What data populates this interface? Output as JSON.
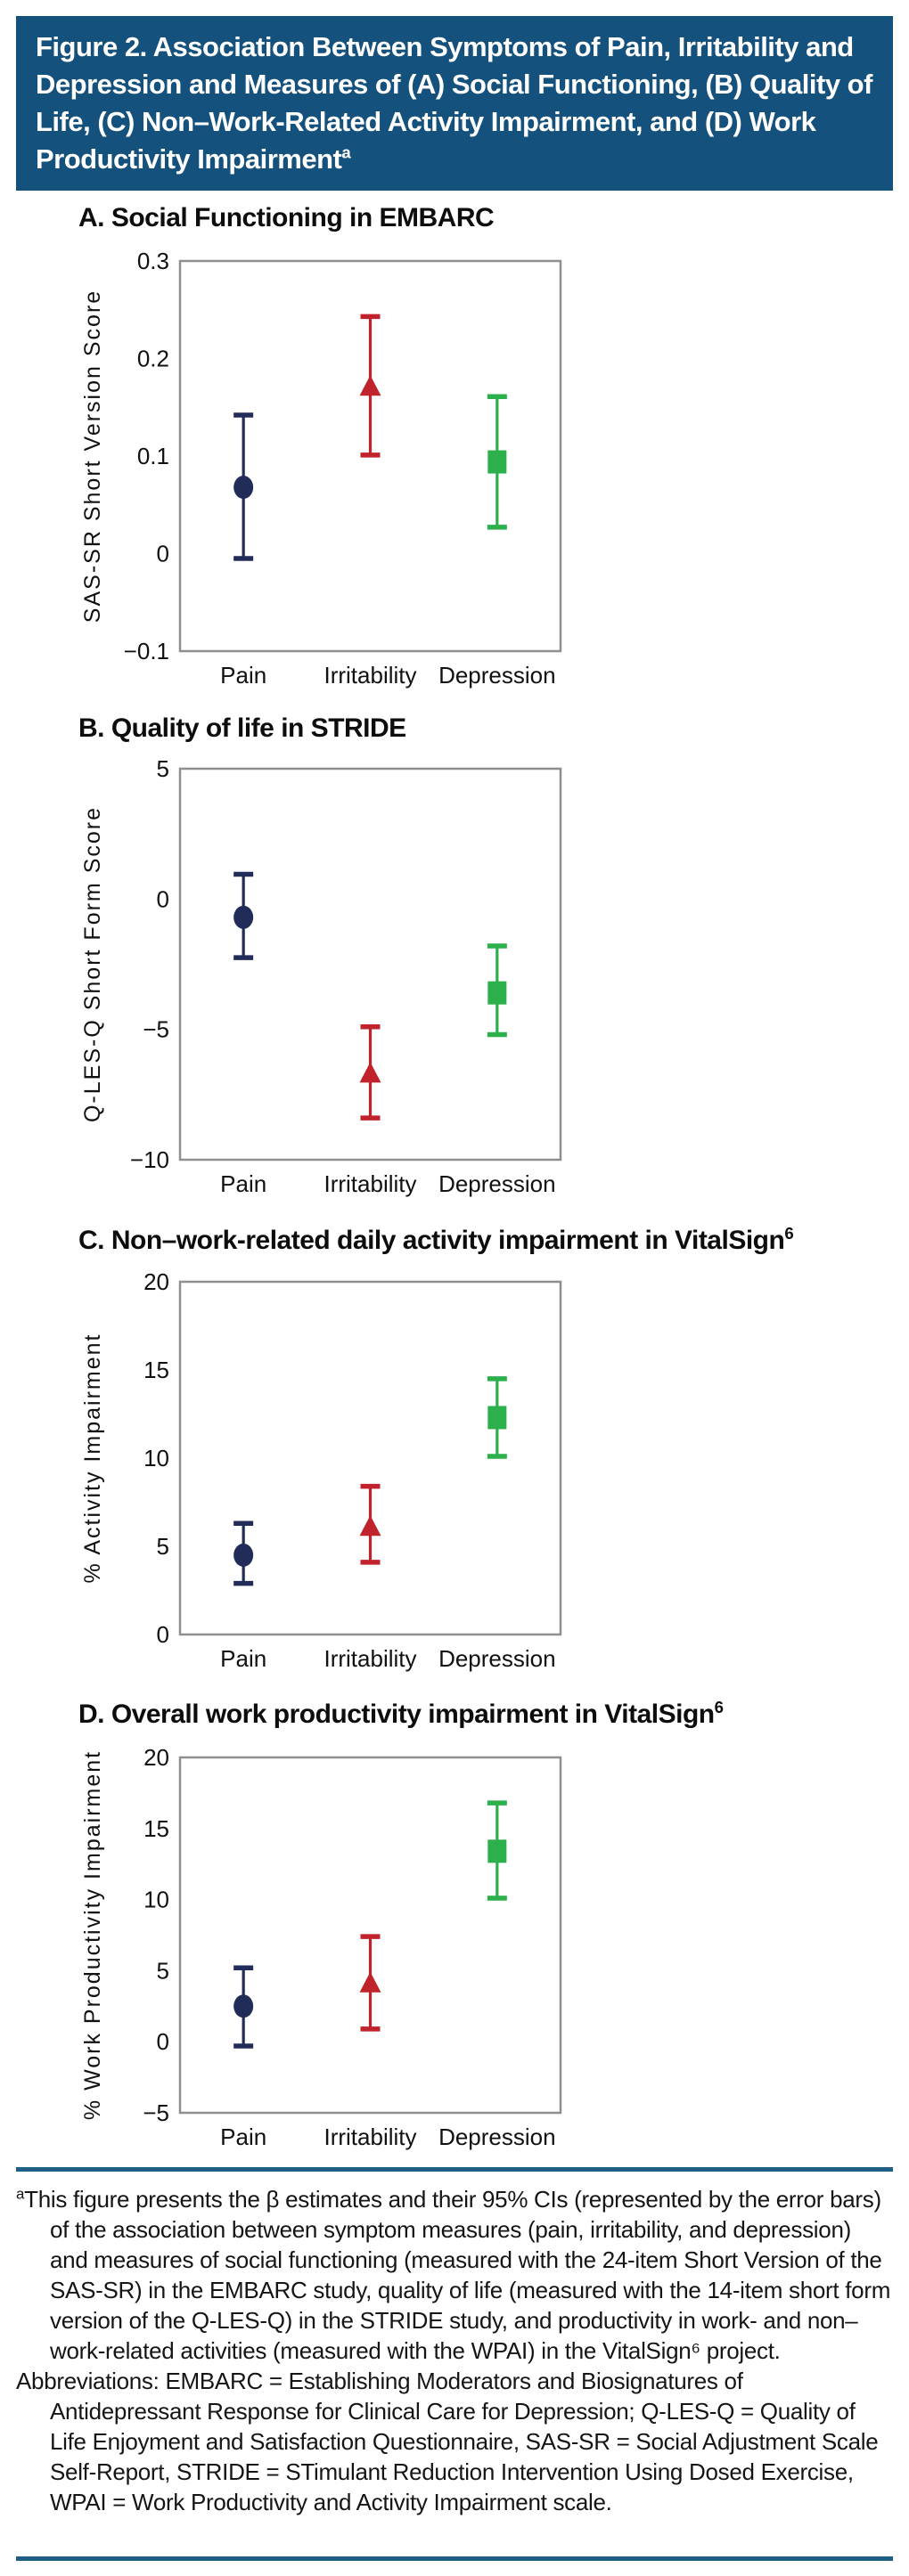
{
  "header": {
    "title": "Figure 2. Association Between Symptoms of Pain, Irritability and Depression and Measures of (A) Social Functioning, (B) Quality of Life, (C) Non–Work-Related Activity Impairment, and (D) Work Productivity Impairment",
    "superscript": "a"
  },
  "colors": {
    "header_bg": "#15517D",
    "rule": "#1F5F86",
    "frame": "#8F8F8F",
    "navy": "#222C58",
    "red": "#C0232C",
    "green": "#2BB04C",
    "text": "#111111"
  },
  "categories": [
    "Pain",
    "Irritability",
    "Depression"
  ],
  "chart_data": [
    {
      "id": "panel-a",
      "type": "scatter",
      "title": "A. Social Functioning in EMBARC",
      "ylabel": "SAS-SR Short Version Score",
      "ylim": [
        -0.1,
        0.3
      ],
      "ytick_values": [
        0.3,
        0.2,
        0.1,
        0,
        -0.1
      ],
      "ytick_labels": [
        "0.3",
        "0.2",
        "0.1",
        "0",
        "−0.1"
      ],
      "categories": [
        "Pain",
        "Irritability",
        "Depression"
      ],
      "grid": false,
      "legend": "none",
      "points": [
        {
          "category": "Pain",
          "marker": "circle",
          "color_key": "navy",
          "estimate": 0.068,
          "ci_low": -0.005,
          "ci_high": 0.142
        },
        {
          "category": "Irritability",
          "marker": "triangle",
          "color_key": "red",
          "estimate": 0.171,
          "ci_low": 0.101,
          "ci_high": 0.243
        },
        {
          "category": "Depression",
          "marker": "square",
          "color_key": "green",
          "estimate": 0.094,
          "ci_low": 0.027,
          "ci_high": 0.161
        }
      ]
    },
    {
      "id": "panel-b",
      "type": "scatter",
      "title": "B. Quality of life in STRIDE",
      "ylabel": "Q-LES-Q Short Form Score",
      "ylim": [
        -10,
        5
      ],
      "ytick_values": [
        5,
        0,
        -5,
        -10
      ],
      "ytick_labels": [
        "5",
        "0",
        "−5",
        "−10"
      ],
      "categories": [
        "Pain",
        "Irritability",
        "Depression"
      ],
      "grid": false,
      "legend": "none",
      "points": [
        {
          "category": "Pain",
          "marker": "circle",
          "color_key": "navy",
          "estimate": -0.7,
          "ci_low": -2.25,
          "ci_high": 0.95
        },
        {
          "category": "Irritability",
          "marker": "triangle",
          "color_key": "red",
          "estimate": -6.7,
          "ci_low": -8.4,
          "ci_high": -4.9
        },
        {
          "category": "Depression",
          "marker": "square",
          "color_key": "green",
          "estimate": -3.6,
          "ci_low": -5.2,
          "ci_high": -1.8
        }
      ]
    },
    {
      "id": "panel-c",
      "type": "scatter",
      "title": "C. Non–work-related daily activity impairment in VitalSign",
      "title_superscript": "6",
      "ylabel": "% Activity Impairment",
      "ylim": [
        0,
        20
      ],
      "ytick_values": [
        20,
        15,
        10,
        5,
        0
      ],
      "ytick_labels": [
        "20",
        "15",
        "10",
        "5",
        "0"
      ],
      "categories": [
        "Pain",
        "Irritability",
        "Depression"
      ],
      "grid": false,
      "legend": "none",
      "points": [
        {
          "category": "Pain",
          "marker": "circle",
          "color_key": "navy",
          "estimate": 4.5,
          "ci_low": 2.9,
          "ci_high": 6.3
        },
        {
          "category": "Irritability",
          "marker": "triangle",
          "color_key": "red",
          "estimate": 6.1,
          "ci_low": 4.1,
          "ci_high": 8.4
        },
        {
          "category": "Depression",
          "marker": "square",
          "color_key": "green",
          "estimate": 12.3,
          "ci_low": 10.1,
          "ci_high": 14.5
        }
      ]
    },
    {
      "id": "panel-d",
      "type": "scatter",
      "title": "D. Overall work productivity impairment in VitalSign",
      "title_superscript": "6",
      "ylabel": "% Work Productivity Impairment",
      "ylim": [
        -5,
        20
      ],
      "ytick_values": [
        20,
        15,
        10,
        5,
        0,
        -5
      ],
      "ytick_labels": [
        "20",
        "15",
        "10",
        "5",
        "0",
        "−5"
      ],
      "categories": [
        "Pain",
        "Irritability",
        "Depression"
      ],
      "grid": false,
      "legend": "none",
      "points": [
        {
          "category": "Pain",
          "marker": "circle",
          "color_key": "navy",
          "estimate": 2.5,
          "ci_low": -0.3,
          "ci_high": 5.2
        },
        {
          "category": "Irritability",
          "marker": "triangle",
          "color_key": "red",
          "estimate": 4.1,
          "ci_low": 0.9,
          "ci_high": 7.4
        },
        {
          "category": "Depression",
          "marker": "square",
          "color_key": "green",
          "estimate": 13.4,
          "ci_low": 10.1,
          "ci_high": 16.8
        }
      ]
    }
  ],
  "footnote": {
    "marker": "a",
    "text": "This figure presents the β estimates and their 95% CIs (represented by the error bars) of the association between symptom measures (pain, irritability, and depression) and measures of social functioning (measured with the 24-item Short Version of the SAS-SR) in the EMBARC study, quality of life (measured with the 14-item short form version of the Q-LES-Q) in the STRIDE study, and productivity in work- and non–work-related activities (measured with the WPAI) in the VitalSign⁶ project.",
    "abbreviations": "Abbreviations: EMBARC = Establishing Moderators and Biosignatures of Antidepressant Response for Clinical Care for Depression; Q-LES-Q = Quality of Life Enjoyment and Satisfaction Questionnaire, SAS-SR = Social Adjustment Scale Self-Report, STRIDE = STimulant Reduction Intervention Using Dosed Exercise, WPAI = Work Productivity and Activity Impairment scale."
  }
}
